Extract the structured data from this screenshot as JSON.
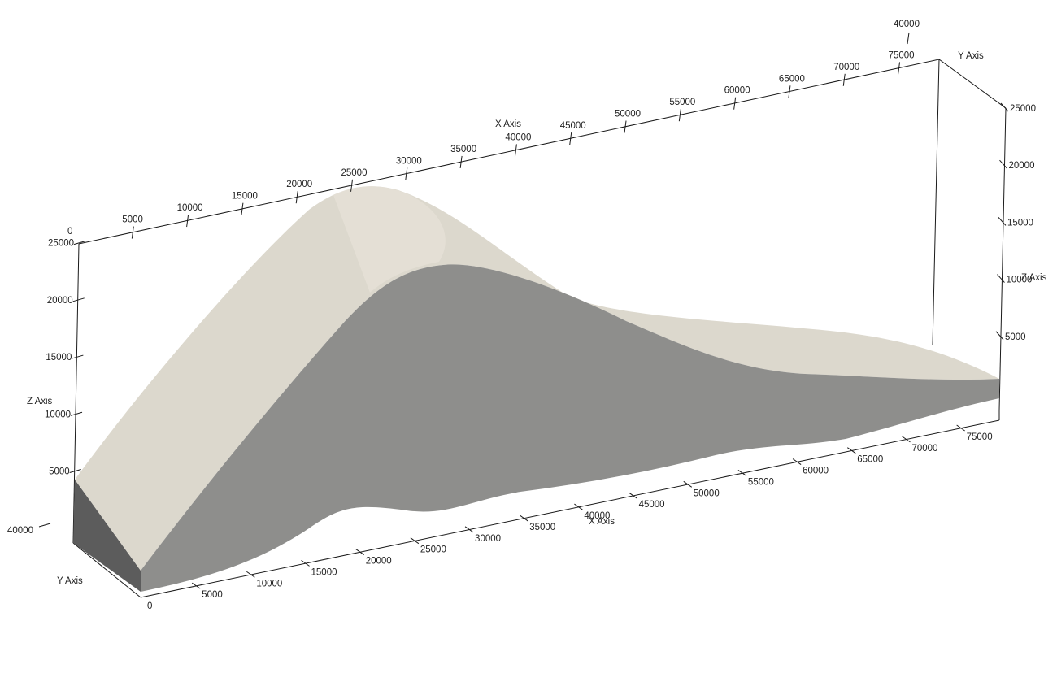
{
  "colors": {
    "background": "#ffffff",
    "top_surface": "#dcd8cd",
    "top_surface_highlight": "#ebe6dc",
    "side_surface": "#8e8e8c",
    "end_face": "#5c5c5c",
    "axis": "#1a1a1a",
    "text": "#222222"
  },
  "axes": {
    "x_title": "X Axis",
    "y_title": "Y Axis",
    "z_title": "Z Axis",
    "x_ticks": [
      "0",
      "5000",
      "10000",
      "15000",
      "20000",
      "25000",
      "30000",
      "35000",
      "40000",
      "45000",
      "50000",
      "55000",
      "60000",
      "65000",
      "70000",
      "75000"
    ],
    "z_ticks": [
      "5000",
      "10000",
      "15000",
      "20000",
      "25000"
    ],
    "y_tick": "40000"
  }
}
